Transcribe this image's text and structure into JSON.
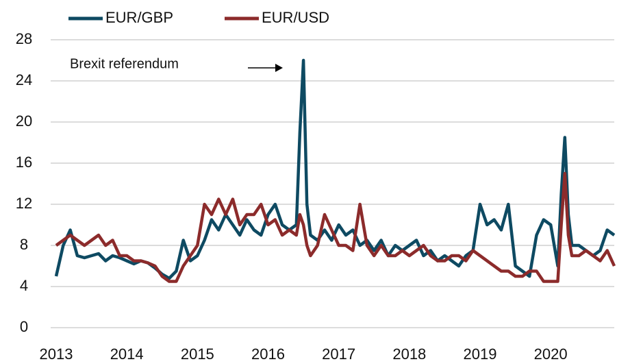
{
  "chart_data": {
    "type": "line",
    "x": [
      2013.0,
      2013.1,
      2013.2,
      2013.3,
      2013.4,
      2013.5,
      2013.6,
      2013.7,
      2013.8,
      2013.9,
      2014.0,
      2014.1,
      2014.2,
      2014.3,
      2014.4,
      2014.5,
      2014.6,
      2014.7,
      2014.8,
      2014.9,
      2015.0,
      2015.1,
      2015.2,
      2015.3,
      2015.4,
      2015.5,
      2015.6,
      2015.7,
      2015.8,
      2015.9,
      2016.0,
      2016.1,
      2016.2,
      2016.3,
      2016.4,
      2016.45,
      2016.5,
      2016.55,
      2016.6,
      2016.7,
      2016.8,
      2016.9,
      2017.0,
      2017.1,
      2017.2,
      2017.3,
      2017.4,
      2017.5,
      2017.6,
      2017.7,
      2017.8,
      2017.9,
      2018.0,
      2018.1,
      2018.2,
      2018.3,
      2018.4,
      2018.5,
      2018.6,
      2018.7,
      2018.8,
      2018.9,
      2019.0,
      2019.1,
      2019.2,
      2019.3,
      2019.4,
      2019.5,
      2019.6,
      2019.7,
      2019.8,
      2019.9,
      2020.0,
      2020.1,
      2020.15,
      2020.2,
      2020.25,
      2020.3,
      2020.4,
      2020.5,
      2020.6,
      2020.7,
      2020.8,
      2020.9
    ],
    "series": [
      {
        "name": "EUR/GBP",
        "color": "#0e4a62",
        "values": [
          5,
          8,
          9.5,
          7,
          6.8,
          7,
          7.2,
          6.5,
          7,
          6.8,
          6.5,
          6.2,
          6.5,
          6.3,
          5.8,
          5.2,
          4.8,
          5.5,
          8.5,
          6.5,
          7,
          8.5,
          10.5,
          9.5,
          11,
          10,
          9,
          10.5,
          9.5,
          9,
          11,
          12,
          10,
          9.5,
          10,
          19,
          26,
          12,
          9,
          8.5,
          9.5,
          8.5,
          10,
          9,
          9.5,
          8,
          8.5,
          7.5,
          8.5,
          7,
          8,
          7.5,
          8,
          8.5,
          7,
          7.5,
          6.5,
          7,
          6.5,
          6,
          7,
          7.5,
          12,
          10,
          10.5,
          9.5,
          12,
          6,
          5.5,
          5,
          9,
          10.5,
          10,
          6,
          13,
          18.5,
          11,
          8,
          8,
          7.5,
          7,
          7.5,
          9.5,
          9
        ]
      },
      {
        "name": "EUR/USD",
        "color": "#8c2b2b",
        "values": [
          8,
          8.5,
          9,
          8.5,
          8,
          8.5,
          9,
          8,
          8.5,
          7,
          7,
          6.5,
          6.5,
          6.3,
          6,
          5,
          4.5,
          4.5,
          6,
          7,
          8,
          12,
          11,
          12.5,
          11,
          12.5,
          10,
          11,
          11,
          12,
          10,
          10.5,
          9,
          9.5,
          9,
          11,
          10,
          8,
          7,
          8,
          11,
          9.5,
          8,
          8,
          7.5,
          12,
          8,
          7,
          8,
          7,
          7,
          7.5,
          7,
          7.5,
          8,
          7,
          6.5,
          6.5,
          7,
          7,
          6.5,
          7.5,
          7,
          6.5,
          6,
          5.5,
          5.5,
          5,
          5,
          5.5,
          5.5,
          4.5,
          4.5,
          4.5,
          10,
          15,
          9,
          7,
          7,
          7.5,
          7,
          6.5,
          7.5,
          6
        ]
      }
    ],
    "xlim": [
      2013,
      2020.9
    ],
    "xticks": [
      2013,
      2014,
      2015,
      2016,
      2017,
      2018,
      2019,
      2020
    ],
    "ylim": [
      0,
      28
    ],
    "yticks": [
      0,
      4,
      8,
      12,
      16,
      20,
      24,
      28
    ],
    "grid": true,
    "annotation": "Brexit referendum"
  }
}
